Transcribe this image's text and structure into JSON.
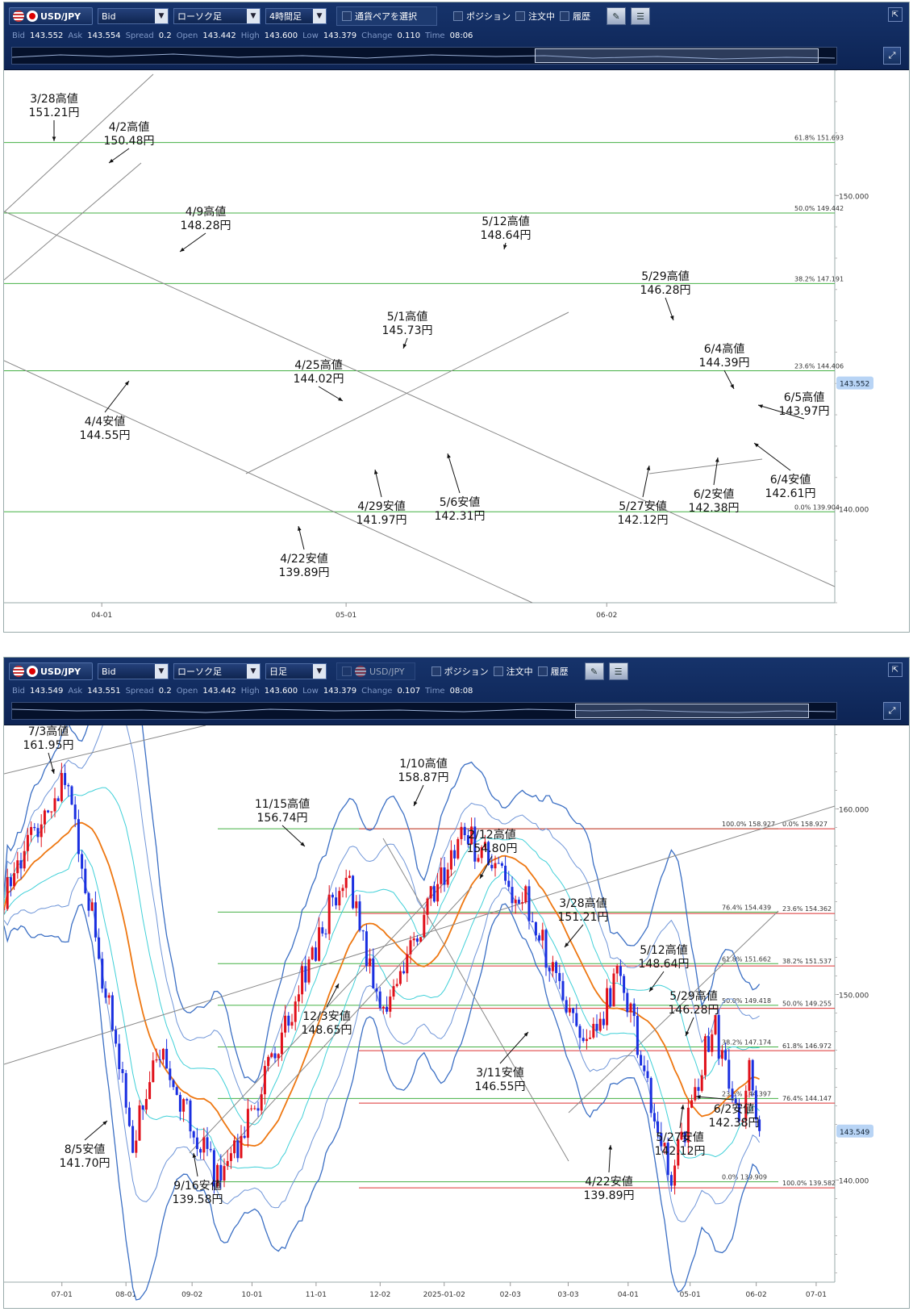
{
  "panels": [
    {
      "pair": "USD/JPY",
      "price_type": "Bid",
      "chart_kind": "ローソク足",
      "timeframe": "4時間足",
      "select_pair_label": "通貨ペアを選択",
      "toggles": [
        "ポジション",
        "注文中",
        "履歴"
      ],
      "quotes": {
        "Bid": "143.552",
        "Ask": "143.554",
        "Spread": "0.2",
        "Open": "143.442",
        "High": "143.600",
        "Low": "143.379",
        "Change": "0.110",
        "Time": "08:06"
      },
      "price_tag": "143.552"
    },
    {
      "pair": "USD/JPY",
      "price_type": "Bid",
      "chart_kind": "ローソク足",
      "timeframe": "日足",
      "select_pair_label": "USD/JPY",
      "toggles": [
        "ポジション",
        "注文中",
        "履歴"
      ],
      "quotes": {
        "Bid": "143.549",
        "Ask": "143.551",
        "Spread": "0.2",
        "Open": "143.442",
        "High": "143.600",
        "Low": "143.379",
        "Change": "0.107",
        "Time": "08:08"
      },
      "price_tag": "143.549"
    }
  ],
  "chart_data": [
    {
      "type": "candlestick",
      "timeframe": "4時間足",
      "ylim": [
        137,
        154
      ],
      "y_ticks": [
        "140.000",
        "150.000"
      ],
      "x_tick_labels": [
        "04-01",
        "05-01",
        "06-02"
      ],
      "path_x": [
        "03-24",
        "03-28",
        "04-02",
        "04-04",
        "04-09",
        "04-11",
        "04-22",
        "04-25",
        "04-29",
        "05-01",
        "05-06",
        "05-12",
        "05-16",
        "05-27",
        "05-29",
        "06-02",
        "06-04",
        "06-05"
      ],
      "path_y": [
        150.3,
        151.21,
        150.48,
        144.55,
        148.28,
        145.3,
        139.89,
        144.02,
        141.97,
        145.73,
        142.31,
        148.64,
        145.5,
        142.12,
        146.28,
        142.38,
        144.39,
        143.6
      ],
      "fib_levels": [
        {
          "label": "61.8%",
          "value": "151.693"
        },
        {
          "label": "50.0%",
          "value": "149.442"
        },
        {
          "label": "38.2%",
          "value": "147.191"
        },
        {
          "label": "23.6%",
          "value": "144.406"
        },
        {
          "label": "0.0%",
          "value": "139.904"
        }
      ],
      "annotations": [
        {
          "date": "3/28高値",
          "price": "151.21円"
        },
        {
          "date": "4/2高値",
          "price": "150.48円"
        },
        {
          "date": "4/9高値",
          "price": "148.28円"
        },
        {
          "date": "4/4安値",
          "price": "144.55円"
        },
        {
          "date": "4/25高値",
          "price": "144.02円"
        },
        {
          "date": "4/22安値",
          "price": "139.89円"
        },
        {
          "date": "4/29安値",
          "price": "141.97円"
        },
        {
          "date": "5/1高値",
          "price": "145.73円"
        },
        {
          "date": "5/6安値",
          "price": "142.31円"
        },
        {
          "date": "5/12高値",
          "price": "148.64円"
        },
        {
          "date": "5/29高値",
          "price": "146.28円"
        },
        {
          "date": "5/27安値",
          "price": "142.12円"
        },
        {
          "date": "6/4高値",
          "price": "144.39円"
        },
        {
          "date": "6/5高値",
          "price": "143.97円"
        },
        {
          "date": "6/2安値",
          "price": "142.38円"
        },
        {
          "date": "6/4安値",
          "price": "142.61円"
        }
      ]
    },
    {
      "type": "candlestick",
      "timeframe": "日足",
      "ylim": [
        134.5,
        164.5
      ],
      "y_ticks": [
        "140.000",
        "150.000",
        "160.000"
      ],
      "x_tick_labels": [
        "07-01",
        "08-01",
        "09-02",
        "10-01",
        "11-01",
        "12-02",
        "2025-01-02",
        "02-03",
        "03-03",
        "04-01",
        "05-01",
        "06-02",
        "07-01"
      ],
      "path_x": [
        "2024-06-03",
        "2024-07-03",
        "2024-08-05",
        "2024-08-15",
        "2024-09-16",
        "2024-10-01",
        "2024-11-15",
        "2024-12-03",
        "2025-01-10",
        "2025-02-12",
        "2025-03-11",
        "2025-03-28",
        "2025-04-22",
        "2025-05-12",
        "2025-05-27",
        "2025-05-29",
        "2025-06-02",
        "2025-06-05"
      ],
      "path_y": [
        155.5,
        161.95,
        141.7,
        147.5,
        139.58,
        143.7,
        156.74,
        148.65,
        158.87,
        154.8,
        146.55,
        151.21,
        139.89,
        148.64,
        142.12,
        146.28,
        142.38,
        143.5
      ],
      "fib_levels": [
        {
          "label": "100.0%",
          "value": "158.927"
        },
        {
          "label": "0.0%",
          "value": "158.927"
        },
        {
          "label": "76.4%",
          "value": "154.439"
        },
        {
          "label": "23.6%",
          "value": "154.362"
        },
        {
          "label": "61.8%",
          "value": "151.662"
        },
        {
          "label": "38.2%",
          "value": "151.537"
        },
        {
          "label": "50.0%",
          "value": "149.418"
        },
        {
          "label": "50.0%",
          "value": "149.255"
        },
        {
          "label": "38.2%",
          "value": "147.174"
        },
        {
          "label": "61.8%",
          "value": "146.972"
        },
        {
          "label": "23.6%",
          "value": "144.397"
        },
        {
          "label": "76.4%",
          "value": "144.147"
        },
        {
          "label": "0.0%",
          "value": "139.909"
        },
        {
          "label": "100.0%",
          "value": "139.582"
        }
      ],
      "annotations": [
        {
          "date": "7/3高値",
          "price": "161.95円"
        },
        {
          "date": "1/10高値",
          "price": "158.87円"
        },
        {
          "date": "11/15高値",
          "price": "156.74円"
        },
        {
          "date": "2/12高値",
          "price": "154.80円"
        },
        {
          "date": "3/28高値",
          "price": "151.21円"
        },
        {
          "date": "5/12高値",
          "price": "148.64円"
        },
        {
          "date": "5/29高値",
          "price": "146.28円"
        },
        {
          "date": "12/3安値",
          "price": "148.65円"
        },
        {
          "date": "3/11安値",
          "price": "146.55円"
        },
        {
          "date": "6/2安値",
          "price": "142.38円"
        },
        {
          "date": "5/27安値",
          "price": "142.12円"
        },
        {
          "date": "8/5安値",
          "price": "141.70円"
        },
        {
          "date": "9/16安値",
          "price": "139.58円"
        },
        {
          "date": "4/22安値",
          "price": "139.89円"
        }
      ]
    }
  ]
}
